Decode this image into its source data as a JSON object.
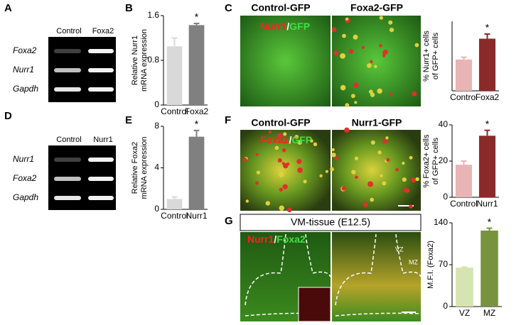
{
  "panel_labels": [
    "A",
    "B",
    "C",
    "D",
    "E",
    "F",
    "G"
  ],
  "gels": [
    {
      "lanes": [
        "Control",
        "Foxa2"
      ],
      "rows": [
        "Foxa2",
        "Nurr1",
        "Gapdh"
      ]
    },
    {
      "lanes": [
        "Control",
        "Nurr1"
      ],
      "rows": [
        "Nurr1",
        "Foxa2",
        "Gapdh"
      ]
    }
  ],
  "images": [
    {
      "headers": [
        "Control-GFP",
        "Foxa2-GFP"
      ],
      "stain": [
        "Nurr1",
        "/",
        "GFP"
      ],
      "stain_colors": [
        "#ff2020",
        "#ffffff",
        "#40e040"
      ]
    },
    {
      "headers": [
        "Control-GFP",
        "Nurr1-GFP"
      ],
      "stain": [
        "Foxa2",
        "/",
        "GFP"
      ],
      "stain_colors": [
        "#ff2020",
        "#ffffff",
        "#40e040"
      ]
    },
    {
      "title": "VM-tissue (E12.5)",
      "stain": [
        "Nurr1",
        "/",
        "Foxa2"
      ],
      "stain_colors": [
        "#ff2020",
        "#ffffff",
        "#40e040"
      ],
      "zones": [
        "VZ",
        "MZ"
      ]
    }
  ],
  "chart_data": [
    {
      "type": "bar",
      "ylabel": [
        "Relative Nurr1",
        "mRNA expression"
      ],
      "categories": [
        "Control",
        "Foxa2"
      ],
      "values": [
        1.05,
        1.43
      ],
      "errors": [
        0.15,
        0.03
      ],
      "colors": [
        "#d9d9d9",
        "#808080"
      ],
      "ylim": [
        0,
        1.6
      ],
      "yticks": [
        0,
        0.8,
        1.6
      ],
      "annotations": [
        {
          "text": "*",
          "category": "Foxa2"
        }
      ]
    },
    {
      "type": "bar",
      "ylabel": [
        "Relative Foxa2",
        "mRNA expression"
      ],
      "categories": [
        "Control",
        "Nurr1"
      ],
      "values": [
        1.0,
        7.0
      ],
      "errors": [
        0.2,
        0.6
      ],
      "colors": [
        "#d9d9d9",
        "#808080"
      ],
      "ylim": [
        0,
        8
      ],
      "yticks": [
        0,
        4,
        8
      ],
      "annotations": [
        {
          "text": "*",
          "category": "Nurr1"
        }
      ]
    },
    {
      "type": "bar",
      "ylabel": [
        "% Nurr1+ cells",
        "of GFP+ cells"
      ],
      "categories": [
        "Control",
        "Foxa2"
      ],
      "values": [
        2.7,
        4.5
      ],
      "errors": [
        0.2,
        0.4
      ],
      "colors": [
        "#e8b4b4",
        "#8b2a2a"
      ],
      "ylim": [
        0,
        6
      ],
      "yticks": [],
      "annotations": [
        {
          "text": "*",
          "category": "Foxa2"
        }
      ]
    },
    {
      "type": "bar",
      "ylabel": [
        "% Foxa2+ cells",
        "of GFP+ cells"
      ],
      "categories": [
        "Control",
        "Nurr1"
      ],
      "values": [
        18,
        34
      ],
      "errors": [
        2,
        3
      ],
      "colors": [
        "#e8b4b4",
        "#8b2a2a"
      ],
      "ylim": [
        0,
        40
      ],
      "yticks": [
        0,
        20,
        40
      ],
      "annotations": [
        {
          "text": "*",
          "category": "Nurr1"
        }
      ]
    },
    {
      "type": "bar",
      "ylabel": [
        "M.F.I. (Foxa2)"
      ],
      "categories": [
        "VZ",
        "MZ"
      ],
      "values": [
        65,
        127
      ],
      "errors": [
        1,
        4
      ],
      "colors": [
        "#d5e4b0",
        "#77933c"
      ],
      "ylim": [
        0,
        140
      ],
      "yticks": [
        0,
        70,
        140
      ],
      "annotations": [
        {
          "text": "*",
          "category": "MZ"
        }
      ]
    }
  ]
}
